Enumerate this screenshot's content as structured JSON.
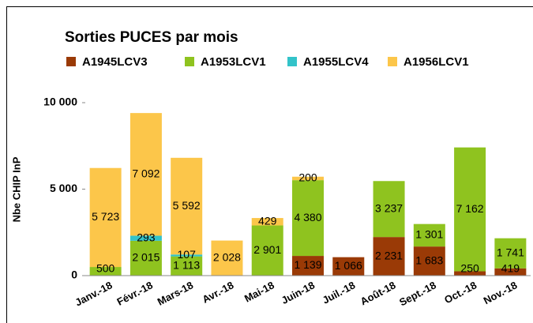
{
  "chart_data": {
    "type": "stacked_bar",
    "title": "Sorties PUCES par mois",
    "y_label": "Nbe CHIP InP",
    "categories": [
      "Janv.-18",
      "Févr.-18",
      "Mars-18",
      "Avr.-18",
      "Mai-18",
      "Juin-18",
      "Juil.-18",
      "Août-18",
      "Sept.-18",
      "Oct.-18",
      "Nov.-18"
    ],
    "series": [
      {
        "name": "A1945LCV3",
        "color": "#9a3a06",
        "values": [
          null,
          null,
          null,
          null,
          null,
          1139,
          1066,
          2231,
          1683,
          250,
          419
        ],
        "value_labels": [
          null,
          null,
          null,
          null,
          null,
          "1 139",
          "1 066",
          "2 231",
          "1 683",
          "250",
          "419"
        ]
      },
      {
        "name": "A1953LCV1",
        "color": "#8fc31f",
        "values": [
          500,
          2015,
          1113,
          null,
          2901,
          4380,
          null,
          3237,
          1301,
          7162,
          1741
        ],
        "value_labels": [
          "500",
          "2 015",
          "1 113",
          null,
          "2 901",
          "4 380",
          null,
          "3 237",
          "1 301",
          "7 162",
          "1 741"
        ]
      },
      {
        "name": "A1955LCV4",
        "color": "#33c3c9",
        "values": [
          null,
          293,
          107,
          null,
          null,
          null,
          null,
          null,
          null,
          null,
          null
        ],
        "value_labels": [
          null,
          "293",
          "107",
          null,
          null,
          null,
          null,
          null,
          null,
          null,
          null
        ]
      },
      {
        "name": "A1956LCV1",
        "color": "#fcc64a",
        "values": [
          5723,
          7092,
          5592,
          2028,
          429,
          200,
          null,
          null,
          null,
          null,
          null
        ],
        "value_labels": [
          "5 723",
          "7 092",
          "5 592",
          "2 028",
          "429",
          "200",
          null,
          null,
          null,
          null,
          null
        ]
      }
    ],
    "ylim": [
      0,
      10000
    ],
    "yticks": [
      0,
      {
        "value": 5000,
        "label": "5 000"
      },
      {
        "value": 10000,
        "label": "10 000"
      }
    ],
    "grid": false
  }
}
